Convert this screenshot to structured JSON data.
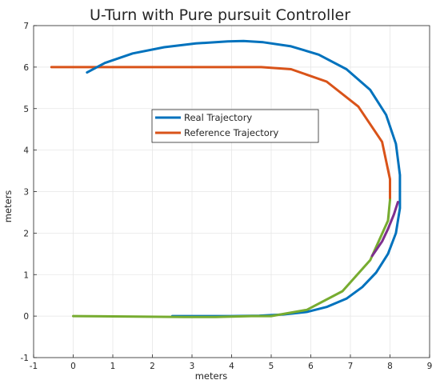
{
  "chart_data": {
    "type": "line",
    "title": "U-Turn with Pure pursuit Controller",
    "xlabel": "meters",
    "ylabel": "meters",
    "xlim": [
      -1,
      9
    ],
    "ylim": [
      -1,
      7
    ],
    "xticks": [
      "-1",
      "0",
      "1",
      "2",
      "3",
      "4",
      "5",
      "6",
      "7",
      "8",
      "9"
    ],
    "yticks": [
      "-1",
      "0",
      "1",
      "2",
      "3",
      "4",
      "5",
      "6",
      "7"
    ],
    "grid": true,
    "legend_position": "center",
    "series": [
      {
        "name": "Real Trajectory",
        "color": "#0072BD",
        "x": [
          0.35,
          0.8,
          1.5,
          2.3,
          3.1,
          3.9,
          4.3,
          4.8,
          5.5,
          6.2,
          6.9,
          7.5,
          7.9,
          8.15,
          8.25,
          8.25,
          8.15,
          7.95,
          7.65,
          7.3,
          6.9,
          6.4,
          5.9,
          5.3,
          4.7,
          4.0,
          3.3,
          2.5
        ],
        "y": [
          5.87,
          6.1,
          6.33,
          6.48,
          6.57,
          6.62,
          6.63,
          6.6,
          6.5,
          6.3,
          5.95,
          5.45,
          4.85,
          4.15,
          3.4,
          2.6,
          2.0,
          1.5,
          1.05,
          0.7,
          0.42,
          0.22,
          0.1,
          0.04,
          0.01,
          0.0,
          0.0,
          0.0
        ]
      },
      {
        "name": "Reference Trajectory",
        "color": "#D95319",
        "x": [
          -0.55,
          4.75,
          5.5,
          6.4,
          7.2,
          7.8,
          8.0,
          8.0
        ],
        "y": [
          6.0,
          6.0,
          5.95,
          5.65,
          5.05,
          4.2,
          3.3,
          2.8
        ]
      },
      {
        "color": "#77AC30",
        "x": [
          0.0,
          2.8,
          3.6,
          4.5,
          5.0,
          5.9,
          6.8,
          7.5,
          7.95,
          8.0
        ],
        "y": [
          0.0,
          -0.02,
          -0.02,
          0.0,
          0.0,
          0.15,
          0.6,
          1.35,
          2.3,
          2.8
        ]
      },
      {
        "color": "#7E2F8E",
        "x": [
          7.55,
          7.8,
          7.95,
          8.1,
          8.2
        ],
        "y": [
          1.45,
          1.8,
          2.1,
          2.45,
          2.75
        ]
      }
    ]
  }
}
